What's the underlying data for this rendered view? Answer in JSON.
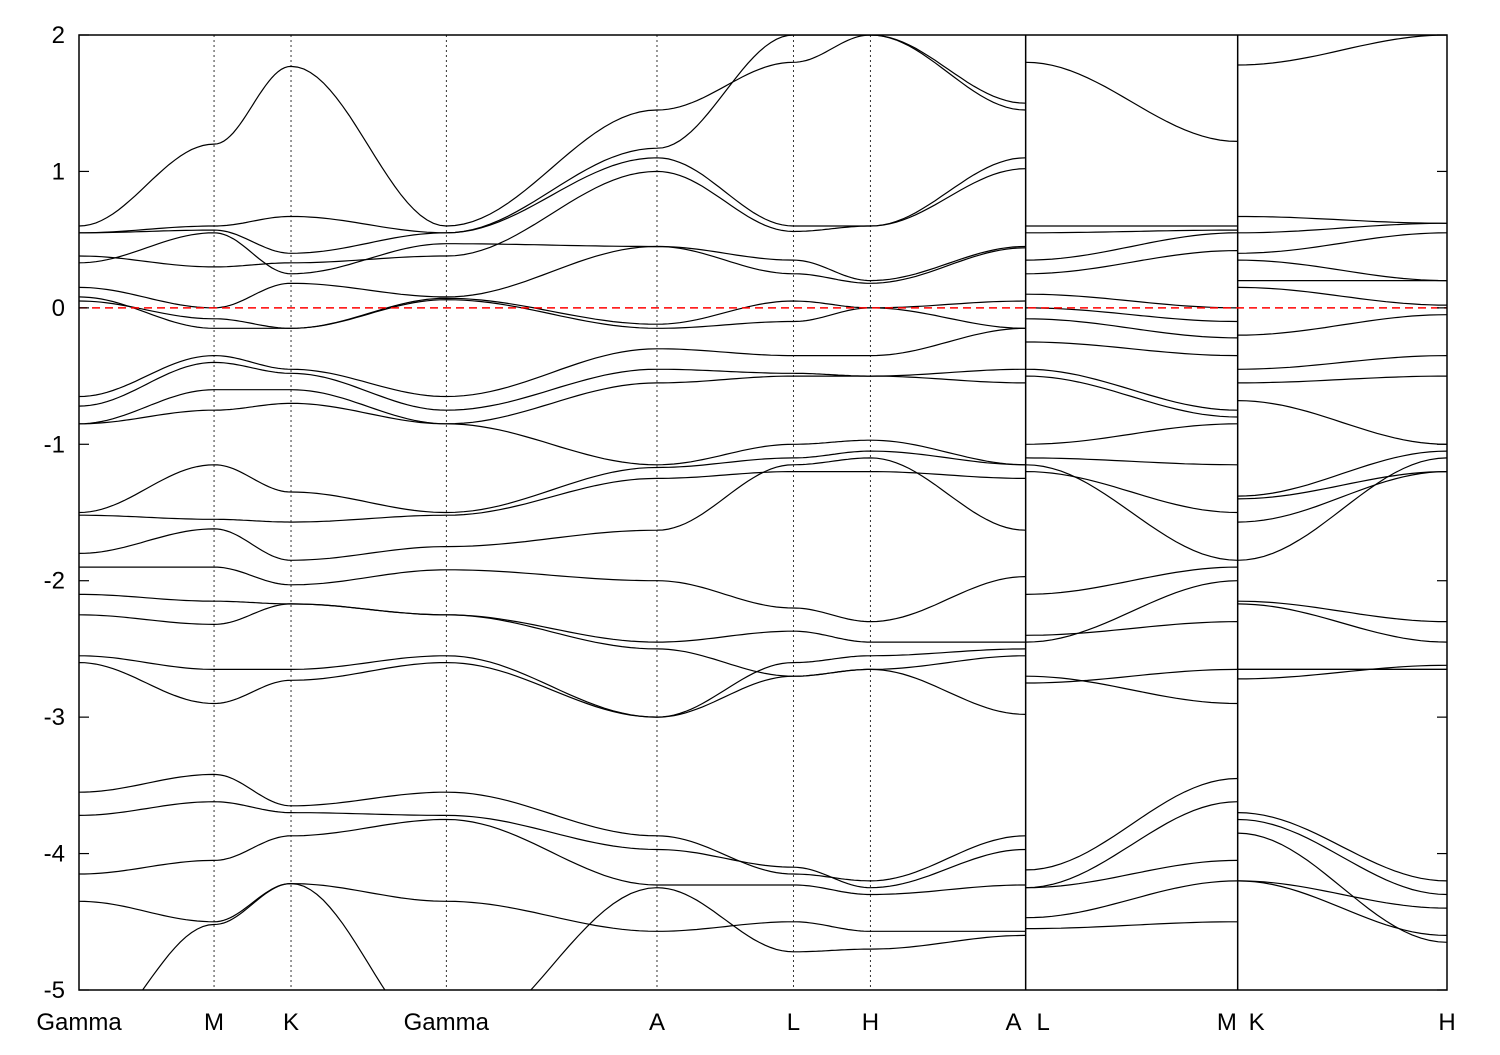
{
  "chart_data": {
    "type": "line",
    "title": "",
    "xlabel": "",
    "ylabel": "",
    "ylim": [
      -5,
      2
    ],
    "yticks": [
      -5,
      -4,
      -3,
      -2,
      -1,
      0,
      1,
      2
    ],
    "ytick_labels": [
      "-5",
      "-4",
      "-3",
      "-2",
      "-1",
      "0",
      "1",
      "2"
    ],
    "xlim": [
      0,
      10.13
    ],
    "kpoints": [
      {
        "label": "Gamma",
        "x": 0
      },
      {
        "label": "M",
        "x": 1.0
      },
      {
        "label": "K",
        "x": 1.57
      },
      {
        "label": "Gamma",
        "x": 2.72
      },
      {
        "label": "A",
        "x": 4.28
      },
      {
        "label": "L",
        "x": 5.29
      },
      {
        "label": "H",
        "x": 5.86
      },
      {
        "label": "A",
        "x": 7.01
      },
      {
        "label": "L",
        "x": 7.01
      },
      {
        "label": "M",
        "x": 8.58
      },
      {
        "label": "K",
        "x": 8.58
      },
      {
        "label": "H",
        "x": 10.13
      }
    ],
    "xtick_labels": [
      {
        "label": "Gamma",
        "x": 0
      },
      {
        "label": "M",
        "x": 1.0
      },
      {
        "label": "K",
        "x": 1.57
      },
      {
        "label": "Gamma",
        "x": 2.72
      },
      {
        "label": "A",
        "x": 4.28
      },
      {
        "label": "L",
        "x": 5.29
      },
      {
        "label": "H",
        "x": 5.86
      },
      {
        "label": "A",
        "x": 6.92
      },
      {
        "label": "L",
        "x": 7.14
      },
      {
        "label": "M",
        "x": 8.5
      },
      {
        "label": "K",
        "x": 8.72
      },
      {
        "label": "H",
        "x": 10.13
      }
    ],
    "path_breaks": [
      7.01,
      8.58
    ],
    "fermi_level": 0,
    "fermi_color": "#ff0000",
    "band_color": "#000000",
    "segments": [
      [
        0,
        7
      ],
      [
        8,
        9
      ],
      [
        10,
        11
      ]
    ],
    "series": [
      {
        "name": "band-1",
        "values": [
          0.6,
          1.2,
          1.77,
          0.6,
          1.45,
          1.8,
          2.0,
          1.45,
          1.8,
          1.22,
          1.78,
          2.0
        ]
      },
      {
        "name": "band-2",
        "values": [
          0.55,
          0.6,
          0.67,
          0.55,
          1.17,
          2.0,
          2.0,
          1.5,
          0.6,
          0.6,
          0.67,
          0.62
        ]
      },
      {
        "name": "band-3",
        "values": [
          0.55,
          0.57,
          0.4,
          0.55,
          1.1,
          0.6,
          0.6,
          1.1,
          0.55,
          0.57,
          0.55,
          0.62
        ]
      },
      {
        "name": "band-4",
        "values": [
          0.38,
          0.3,
          0.33,
          0.38,
          1.0,
          0.56,
          0.6,
          1.02,
          0.35,
          0.55,
          0.4,
          0.55
        ]
      },
      {
        "name": "band-5",
        "values": [
          0.33,
          0.55,
          0.25,
          0.47,
          0.45,
          0.35,
          0.2,
          0.45,
          0.25,
          0.42,
          0.35,
          0.2
        ]
      },
      {
        "name": "band-6",
        "values": [
          0.15,
          0.0,
          0.18,
          0.08,
          0.45,
          0.25,
          0.18,
          0.44,
          0.1,
          0.0,
          0.2,
          0.2
        ]
      },
      {
        "name": "band-7",
        "values": [
          0.08,
          -0.15,
          -0.15,
          0.07,
          -0.12,
          0.05,
          0.0,
          0.05,
          0.0,
          -0.1,
          0.15,
          0.02
        ]
      },
      {
        "name": "band-8",
        "values": [
          0.05,
          -0.08,
          -0.15,
          0.06,
          -0.15,
          -0.1,
          0.0,
          -0.15,
          -0.08,
          -0.22,
          -0.2,
          -0.05
        ]
      },
      {
        "name": "band-9",
        "values": [
          -0.65,
          -0.35,
          -0.45,
          -0.65,
          -0.3,
          -0.35,
          -0.35,
          -0.15,
          -0.25,
          -0.35,
          -0.45,
          -0.35
        ]
      },
      {
        "name": "band-10",
        "values": [
          -0.72,
          -0.4,
          -0.48,
          -0.75,
          -0.45,
          -0.48,
          -0.5,
          -0.55,
          -0.45,
          -0.75,
          -0.55,
          -0.5
        ]
      },
      {
        "name": "band-11",
        "values": [
          -0.85,
          -0.6,
          -0.6,
          -0.85,
          -0.55,
          -0.5,
          -0.5,
          -0.45,
          -0.5,
          -0.8,
          -0.68,
          -1.0
        ]
      },
      {
        "name": "band-12",
        "values": [
          -0.85,
          -0.75,
          -0.7,
          -0.85,
          -1.15,
          -1.0,
          -0.97,
          -1.15,
          -1.0,
          -0.85,
          -1.38,
          -1.05
        ]
      },
      {
        "name": "band-13",
        "values": [
          -1.5,
          -1.15,
          -1.35,
          -1.5,
          -1.17,
          -1.1,
          -1.05,
          -1.15,
          -1.1,
          -1.15,
          -1.4,
          -1.2
        ]
      },
      {
        "name": "band-14",
        "values": [
          -1.52,
          -1.55,
          -1.57,
          -1.52,
          -1.25,
          -1.2,
          -1.2,
          -1.25,
          -1.2,
          -1.5,
          -1.57,
          -1.2
        ]
      },
      {
        "name": "band-15",
        "values": [
          -1.8,
          -1.62,
          -1.85,
          -1.75,
          -1.63,
          -1.15,
          -1.1,
          -1.63,
          -1.15,
          -1.85,
          -1.85,
          -1.1
        ]
      },
      {
        "name": "band-16",
        "values": [
          -1.9,
          -1.9,
          -2.03,
          -1.92,
          -2.0,
          -2.2,
          -2.3,
          -1.97,
          -2.1,
          -1.9,
          -2.15,
          -2.3
        ]
      },
      {
        "name": "band-17",
        "values": [
          -2.1,
          -2.15,
          -2.17,
          -2.25,
          -2.45,
          -2.37,
          -2.45,
          -2.45,
          -2.4,
          -2.3,
          -2.17,
          -2.45
        ]
      },
      {
        "name": "band-18",
        "values": [
          -2.25,
          -2.32,
          -2.17,
          -2.25,
          -2.5,
          -2.7,
          -2.65,
          -2.55,
          -2.45,
          -2.0,
          -2.65,
          -2.65
        ]
      },
      {
        "name": "band-19",
        "values": [
          -2.55,
          -2.65,
          -2.65,
          -2.55,
          -3.0,
          -2.7,
          -2.65,
          -2.98,
          -2.7,
          -2.9,
          -2.72,
          -2.62
        ]
      },
      {
        "name": "band-20",
        "values": [
          -2.6,
          -2.9,
          -2.73,
          -2.6,
          -3.0,
          -2.6,
          -2.55,
          -2.5,
          -2.75,
          -2.65,
          -2.65,
          -2.65
        ]
      },
      {
        "name": "band-21",
        "values": [
          -3.55,
          -3.42,
          -3.65,
          -3.55,
          -3.87,
          -4.15,
          -4.2,
          -3.87,
          -4.12,
          -3.45,
          -3.7,
          -4.2
        ]
      },
      {
        "name": "band-22",
        "values": [
          -3.72,
          -3.62,
          -3.7,
          -3.72,
          -3.97,
          -4.1,
          -4.25,
          -3.97,
          -4.25,
          -3.62,
          -3.75,
          -4.3
        ]
      },
      {
        "name": "band-23",
        "values": [
          -4.15,
          -4.05,
          -3.87,
          -3.75,
          -4.23,
          -4.23,
          -4.3,
          -4.23,
          -4.25,
          -4.05,
          -4.2,
          -4.4
        ]
      },
      {
        "name": "band-24",
        "values": [
          -4.35,
          -4.5,
          -4.22,
          -4.35,
          -4.57,
          -4.5,
          -4.57,
          -4.57,
          -4.47,
          -4.2,
          -4.2,
          -4.6
        ]
      },
      {
        "name": "band-25",
        "values": [
          -5.4,
          -4.52,
          -4.22,
          -5.4,
          -4.25,
          -4.72,
          -4.7,
          -4.6,
          -4.55,
          -4.5,
          -3.85,
          -4.65
        ]
      }
    ]
  }
}
